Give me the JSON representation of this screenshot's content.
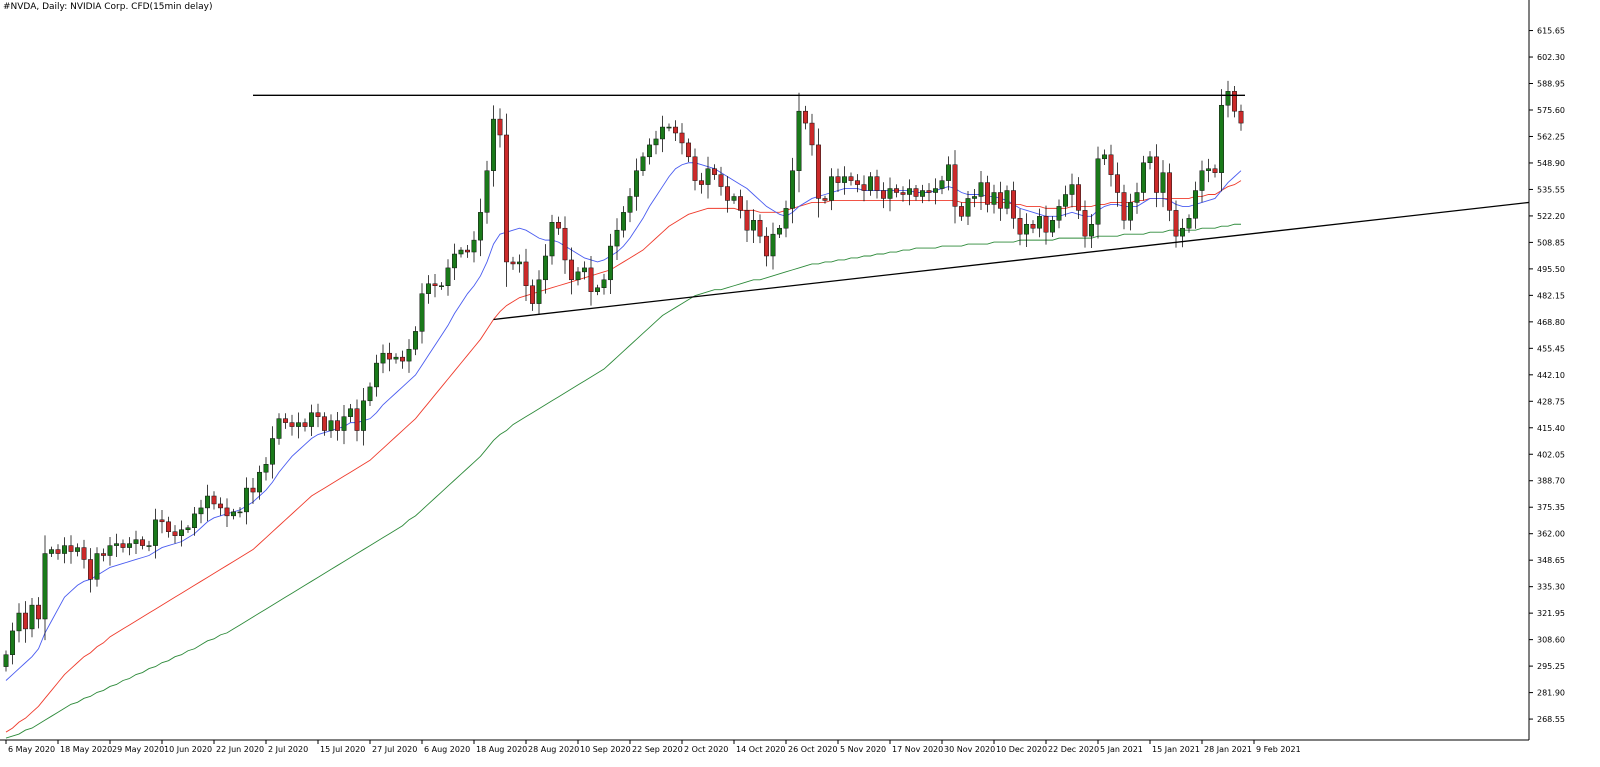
{
  "header": {
    "title": "#NVDA, Daily:  NVIDIA Corp. CFD(15min delay)"
  },
  "colors": {
    "background": "#ffffff",
    "axis": "#000000",
    "bull": "#1a7a1a",
    "bear": "#cc2a2a",
    "ma_fast": "#4a5cf0",
    "ma_mid": "#ef3b2c",
    "ma_slow": "#2d8a3a",
    "trendline": "#000000"
  },
  "chart_data": {
    "type": "candlestick",
    "symbol": "#NVDA",
    "timeframe": "Daily",
    "ylim": [
      258,
      625
    ],
    "y_ticks": [
      "615.65",
      "602.30",
      "588.95",
      "575.60",
      "562.25",
      "548.90",
      "535.55",
      "522.20",
      "508.85",
      "495.50",
      "482.15",
      "468.80",
      "455.45",
      "442.10",
      "428.75",
      "415.40",
      "402.05",
      "388.70",
      "375.35",
      "362.00",
      "348.65",
      "335.30",
      "321.95",
      "308.60",
      "295.25",
      "281.90",
      "268.55"
    ],
    "x_labels": [
      "6 May 2020",
      "18 May 2020",
      "29 May 2020",
      "10 Jun 2020",
      "22 Jun 2020",
      "2 Jul 2020",
      "15 Jul 2020",
      "27 Jul 2020",
      "6 Aug 2020",
      "18 Aug 2020",
      "28 Aug 2020",
      "10 Sep 2020",
      "22 Sep 2020",
      "2 Oct 2020",
      "14 Oct 2020",
      "26 Oct 2020",
      "5 Nov 2020",
      "17 Nov 2020",
      "30 Nov 2020",
      "10 Dec 2020",
      "22 Dec 2020",
      "5 Jan 2021",
      "15 Jan 2021",
      "28 Jan 2021",
      "9 Feb 2021"
    ],
    "x_label_index": [
      0,
      8,
      16,
      24,
      32,
      40,
      48,
      56,
      64,
      72,
      80,
      88,
      96,
      104,
      112,
      120,
      128,
      136,
      144,
      152,
      160,
      168,
      176,
      184,
      192
    ],
    "closes": [
      301,
      313,
      322,
      314,
      326,
      319,
      352,
      354,
      352,
      356,
      353,
      355,
      349,
      339,
      352,
      351,
      356,
      357,
      355,
      357,
      359,
      356,
      356,
      369,
      368,
      363,
      361,
      364,
      365,
      372,
      375,
      381,
      377,
      375,
      371,
      373,
      373,
      385,
      383,
      393,
      397,
      410,
      420,
      418,
      416,
      418,
      416,
      423,
      421,
      414,
      419,
      414,
      421,
      425,
      414,
      429,
      436,
      448,
      453,
      450,
      451,
      449,
      455,
      464,
      483,
      488,
      487,
      487,
      496,
      503,
      505,
      504,
      510,
      524,
      545,
      571,
      563,
      499,
      498,
      499,
      487,
      478,
      490,
      502,
      519,
      516,
      500,
      490,
      494,
      496,
      484,
      486,
      490,
      507,
      515,
      524,
      532,
      545,
      552,
      558,
      561,
      567,
      567,
      564,
      559,
      552,
      540,
      538,
      546,
      543,
      537,
      530,
      532,
      525,
      515,
      520,
      512,
      502,
      513,
      516,
      526,
      545,
      575,
      569,
      558,
      531,
      530,
      542,
      539,
      542,
      540,
      538,
      535,
      542,
      535,
      531,
      536,
      534,
      533,
      536,
      532,
      535,
      534,
      536,
      540,
      548,
      527,
      522,
      531,
      532,
      539,
      528,
      534,
      526,
      535,
      521,
      513,
      518,
      516,
      522,
      514,
      520,
      527,
      533,
      538,
      525,
      512,
      518,
      551,
      553,
      543,
      534,
      520,
      529,
      534,
      549,
      552,
      534,
      544,
      525,
      512,
      516,
      521,
      535,
      545,
      546,
      544,
      578,
      585,
      575,
      569
    ],
    "ma_fast": [
      288,
      291,
      294,
      297,
      300,
      304,
      312,
      318,
      324,
      330,
      333,
      336,
      338,
      339,
      341,
      343,
      345,
      346,
      347,
      348,
      349,
      350,
      351,
      353,
      355,
      356,
      357,
      358,
      360,
      362,
      365,
      368,
      370,
      371,
      372,
      373,
      374,
      376,
      378,
      381,
      384,
      388,
      393,
      397,
      401,
      404,
      407,
      410,
      412,
      413,
      414,
      415,
      416,
      418,
      418,
      419,
      420,
      423,
      427,
      430,
      433,
      436,
      439,
      442,
      447,
      452,
      457,
      462,
      467,
      473,
      478,
      483,
      487,
      492,
      499,
      508,
      513,
      514,
      515,
      516,
      515,
      513,
      511,
      510,
      510,
      509,
      507,
      505,
      503,
      501,
      500,
      499,
      500,
      502,
      504,
      507,
      511,
      516,
      521,
      527,
      532,
      537,
      542,
      546,
      548,
      549,
      549,
      548,
      547,
      546,
      544,
      542,
      540,
      538,
      536,
      533,
      530,
      527,
      525,
      523,
      522,
      524,
      527,
      529,
      531,
      532,
      533,
      534,
      535,
      536,
      536,
      536,
      535,
      535,
      535,
      535,
      535,
      535,
      535,
      535,
      534,
      534,
      534,
      535,
      536,
      537,
      536,
      534,
      533,
      533,
      533,
      532,
      532,
      531,
      530,
      528,
      526,
      525,
      524,
      523,
      522,
      522,
      522,
      523,
      524,
      523,
      522,
      522,
      525,
      527,
      528,
      528,
      527,
      527,
      527,
      529,
      531,
      531,
      531,
      530,
      528,
      527,
      527,
      528,
      529,
      530,
      531,
      535,
      539,
      542,
      545
    ],
    "ma_mid": [
      262,
      264,
      267,
      269,
      272,
      275,
      279,
      283,
      287,
      291,
      294,
      297,
      300,
      302,
      305,
      307,
      310,
      312,
      314,
      316,
      318,
      320,
      322,
      324,
      326,
      328,
      330,
      332,
      334,
      336,
      338,
      340,
      342,
      344,
      346,
      348,
      350,
      352,
      354,
      357,
      360,
      363,
      366,
      369,
      372,
      375,
      378,
      381,
      383,
      385,
      387,
      389,
      391,
      393,
      395,
      397,
      399,
      402,
      405,
      408,
      411,
      414,
      417,
      420,
      424,
      428,
      432,
      436,
      440,
      444,
      448,
      452,
      456,
      460,
      465,
      470,
      474,
      477,
      479,
      481,
      482,
      483,
      484,
      485,
      486,
      487,
      488,
      489,
      490,
      491,
      492,
      493,
      494,
      495,
      497,
      499,
      501,
      503,
      505,
      508,
      511,
      514,
      517,
      519,
      521,
      523,
      524,
      525,
      526,
      526,
      526,
      526,
      526,
      525,
      525,
      525,
      524,
      524,
      524,
      524,
      525,
      526,
      527,
      528,
      529,
      529,
      529,
      530,
      530,
      530,
      530,
      530,
      530,
      530,
      530,
      530,
      530,
      530,
      530,
      530,
      530,
      530,
      530,
      530,
      530,
      530,
      530,
      529,
      529,
      529,
      529,
      529,
      529,
      529,
      529,
      528,
      528,
      527,
      527,
      527,
      526,
      526,
      526,
      526,
      527,
      527,
      527,
      527,
      528,
      528,
      529,
      529,
      529,
      529,
      530,
      530,
      531,
      531,
      531,
      531,
      531,
      531,
      531,
      532,
      532,
      533,
      533,
      535,
      537,
      538,
      540
    ],
    "ma_slow": [
      259,
      260,
      261,
      263,
      264,
      266,
      268,
      270,
      272,
      274,
      276,
      277,
      279,
      280,
      282,
      283,
      285,
      286,
      288,
      289,
      291,
      292,
      294,
      295,
      297,
      298,
      300,
      301,
      303,
      304,
      306,
      308,
      309,
      311,
      312,
      314,
      316,
      318,
      320,
      322,
      324,
      326,
      328,
      330,
      332,
      334,
      336,
      338,
      340,
      342,
      344,
      346,
      348,
      350,
      352,
      354,
      356,
      358,
      360,
      362,
      364,
      366,
      369,
      371,
      374,
      377,
      380,
      383,
      386,
      389,
      392,
      395,
      398,
      401,
      405,
      409,
      412,
      414,
      417,
      419,
      421,
      423,
      425,
      427,
      429,
      431,
      433,
      435,
      437,
      439,
      441,
      443,
      445,
      448,
      451,
      454,
      457,
      460,
      463,
      466,
      469,
      472,
      474,
      476,
      478,
      480,
      482,
      483,
      484,
      485,
      485,
      486,
      487,
      488,
      489,
      490,
      490,
      491,
      492,
      493,
      494,
      495,
      496,
      497,
      498,
      498,
      499,
      499,
      500,
      500,
      501,
      501,
      502,
      502,
      503,
      503,
      504,
      504,
      505,
      505,
      506,
      506,
      506,
      506,
      507,
      507,
      507,
      507,
      508,
      508,
      508,
      508,
      509,
      509,
      509,
      509,
      510,
      510,
      510,
      510,
      510,
      510,
      511,
      511,
      511,
      511,
      511,
      511,
      512,
      512,
      512,
      512,
      513,
      513,
      513,
      513,
      514,
      514,
      514,
      515,
      515,
      515,
      515,
      515,
      516,
      516,
      516,
      517,
      517,
      518,
      518
    ],
    "resistance_level": 583,
    "support_trendline": {
      "from_value": 470,
      "to_value": 529
    },
    "ma_periods_note": ""
  }
}
